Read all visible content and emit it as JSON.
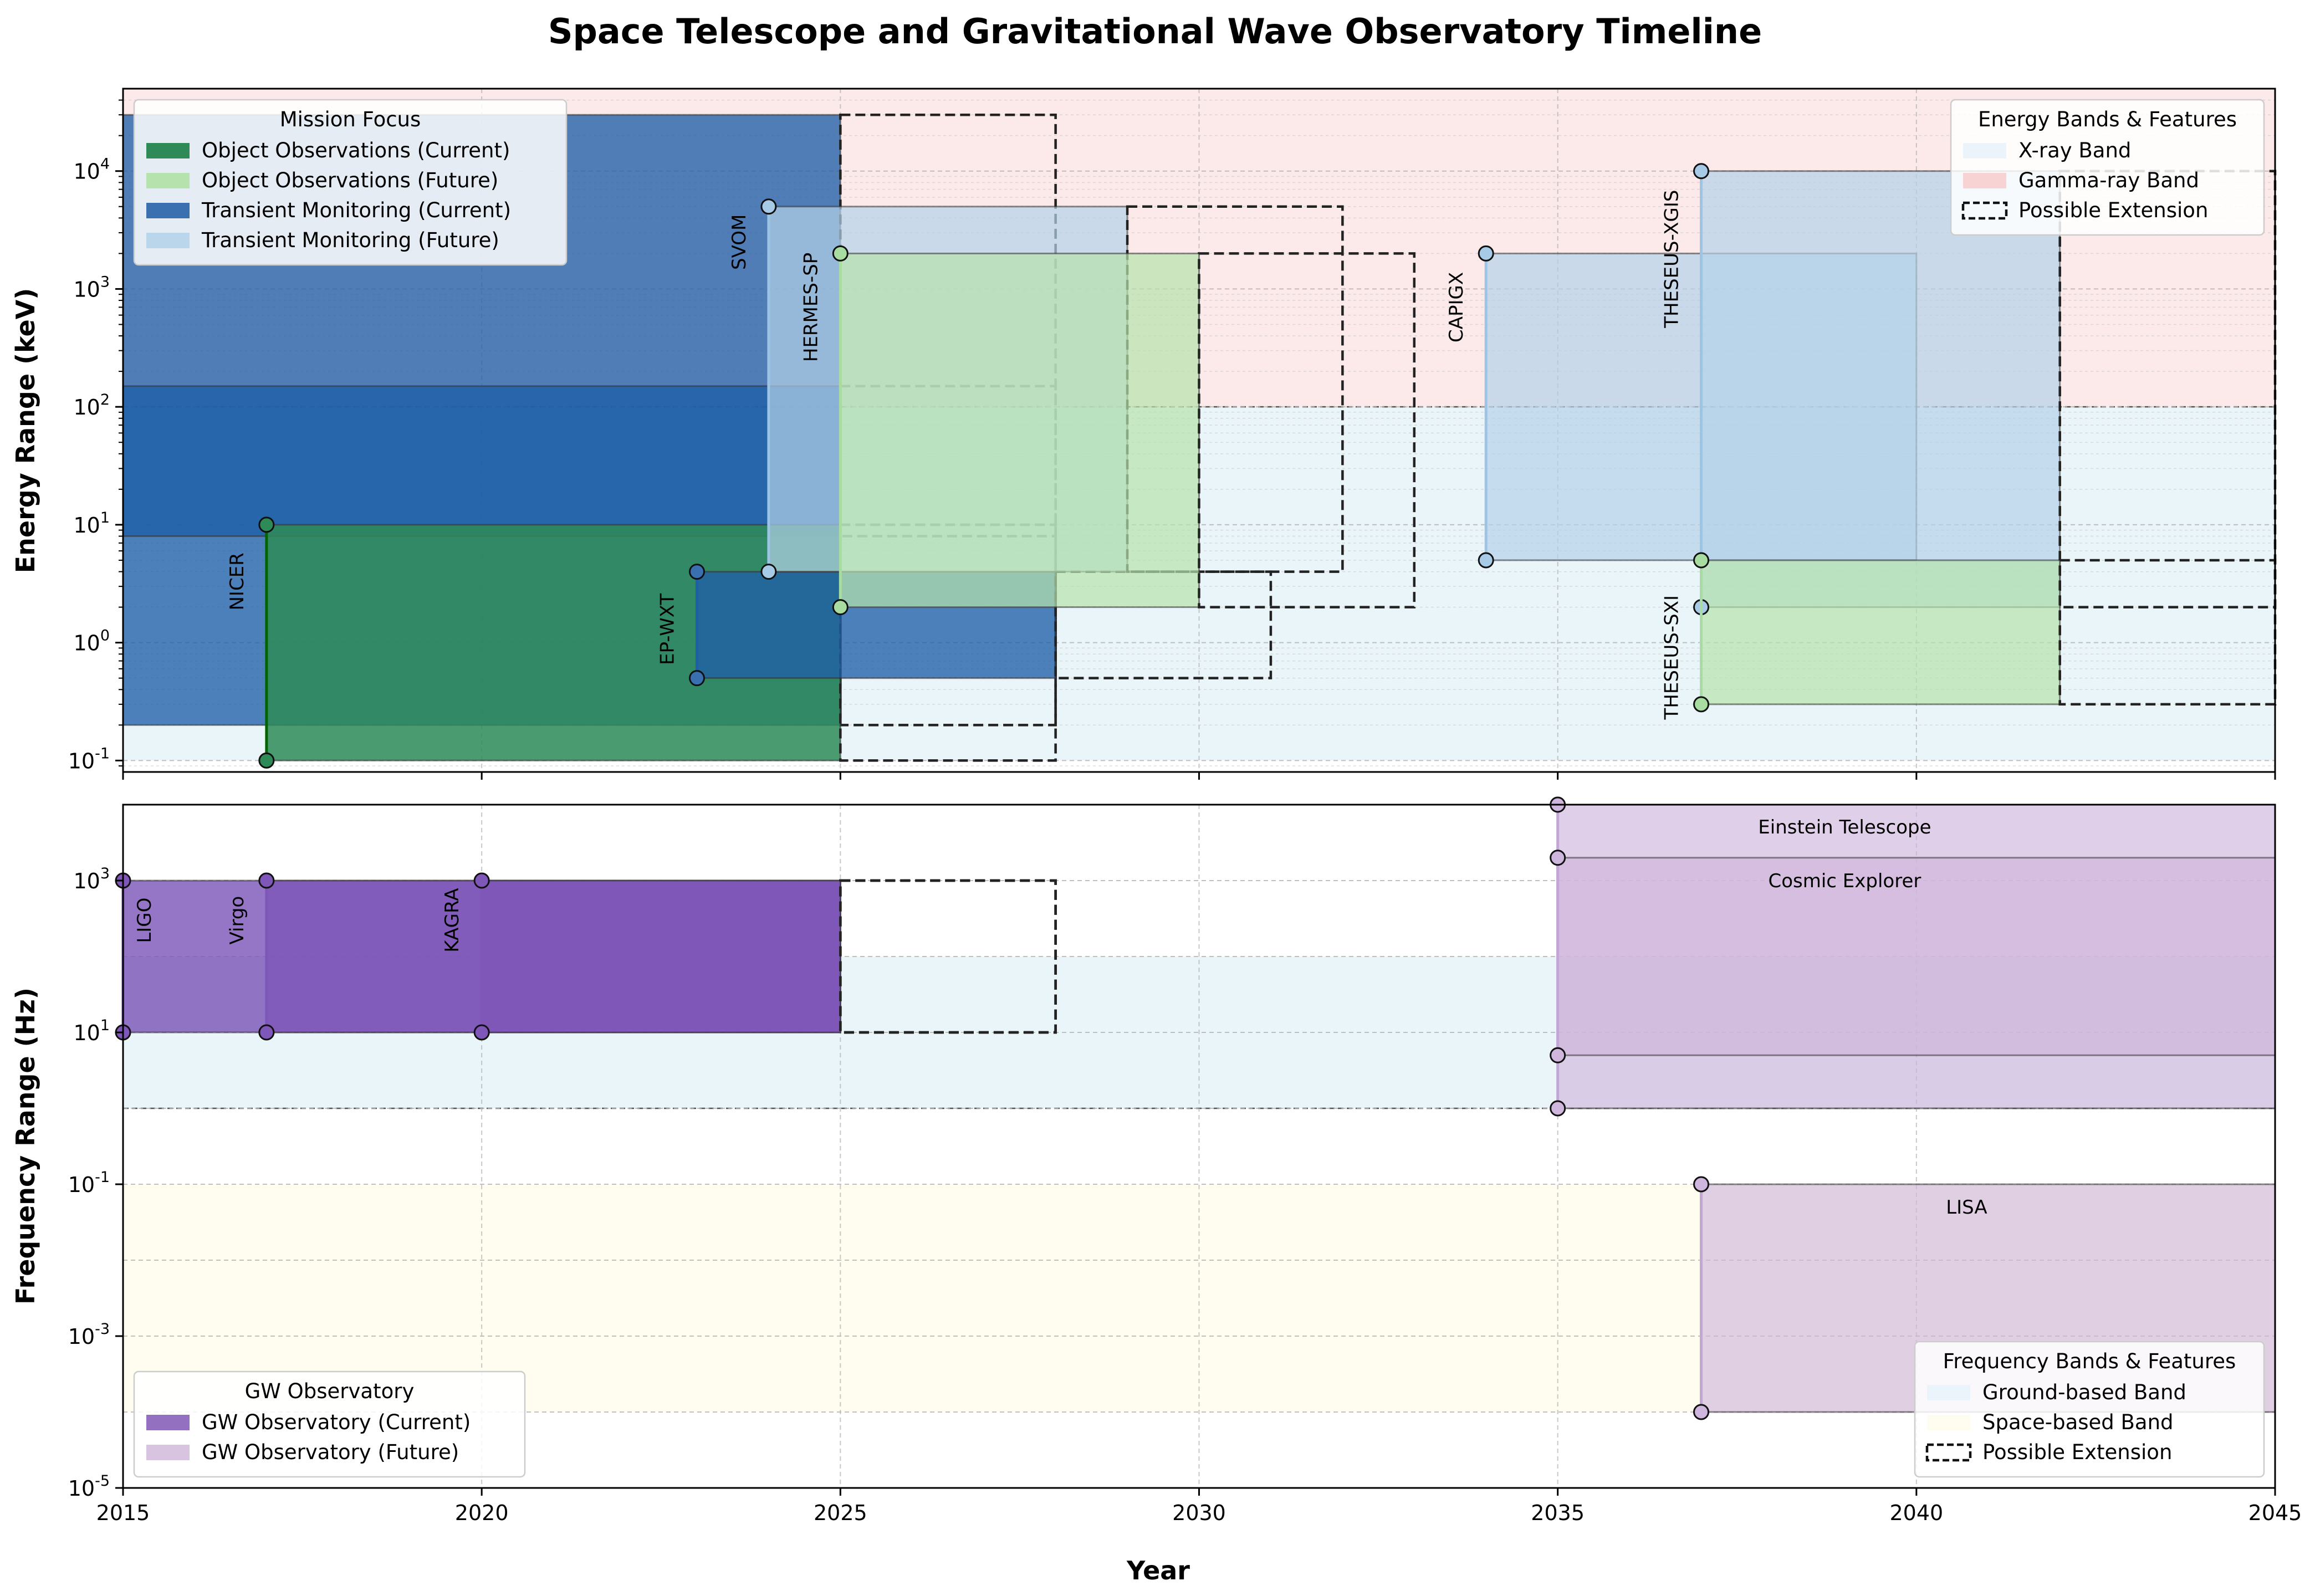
{
  "title": "Space Telescope and Gravitational Wave Observatory Timeline",
  "chart_data": [
    {
      "type": "timeline",
      "panel": "top",
      "xlabel": "Year",
      "ylabel": "Energy Range (keV)",
      "xlim": [
        2015,
        2045
      ],
      "ylim": [
        0.08,
        50000
      ],
      "yscale": "log",
      "xticks": [
        "2015",
        "2020",
        "2025",
        "2030",
        "2035",
        "2040",
        "2045"
      ],
      "yticks": [
        {
          "exp": "-1"
        },
        {
          "exp": "0"
        },
        {
          "exp": "1"
        },
        {
          "exp": "2"
        },
        {
          "exp": "3"
        },
        {
          "exp": "4"
        }
      ],
      "bands": [
        {
          "name": "X-ray Band",
          "y": [
            0.1,
            100
          ],
          "color": "#add8e6"
        },
        {
          "name": "Gamma-ray Band",
          "y": [
            100,
            50000
          ],
          "color": "#f4a6a6"
        }
      ],
      "missions": [
        {
          "name": "",
          "start": 2015,
          "end": 2025,
          "ext_end": 2028,
          "ymin": 0.2,
          "ymax": 30000,
          "category": "Transient Monitoring (Current)"
        },
        {
          "name": "",
          "start": 2015,
          "end": 2025,
          "ext_end": 2028,
          "ymin": 8,
          "ymax": 150,
          "category": "Transient Monitoring (Current)"
        },
        {
          "name": "NICER",
          "start": 2017,
          "end": 2025,
          "ext_end": 2028,
          "ymin": 0.1,
          "ymax": 10,
          "category": "Object Observations (Current)"
        },
        {
          "name": "EP-WXT",
          "start": 2023,
          "end": 2028,
          "ext_end": 2031,
          "ymin": 0.5,
          "ymax": 4,
          "category": "Transient Monitoring (Current)"
        },
        {
          "name": "SVOM",
          "start": 2024,
          "end": 2029,
          "ext_end": 2032,
          "ymin": 4,
          "ymax": 5000,
          "category": "Transient Monitoring (Future)"
        },
        {
          "name": "HERMES-SP",
          "start": 2025,
          "end": 2030,
          "ext_end": 2033,
          "ymin": 2,
          "ymax": 2000,
          "category": "Object Observations (Future)"
        },
        {
          "name": "CAPIGX",
          "start": 2034,
          "end": 2040,
          "ext_end": null,
          "ymin": 5,
          "ymax": 2000,
          "category": "Transient Monitoring (Future)"
        },
        {
          "name": "THESEUS-XGIS",
          "start": 2037,
          "end": 2042,
          "ext_end": 2045,
          "ymin": 2,
          "ymax": 10000,
          "category": "Transient Monitoring (Future)"
        },
        {
          "name": "THESEUS-SXI",
          "start": 2037,
          "end": 2042,
          "ext_end": 2045,
          "ymin": 0.3,
          "ymax": 5,
          "category": "Object Observations (Future)"
        }
      ],
      "legends": [
        {
          "title": "Mission Focus",
          "placement": "upper-left",
          "entries": [
            {
              "label": "Object Observations (Current)",
              "color": "#2e8b57"
            },
            {
              "label": "Object Observations (Future)",
              "color": "#b6e3ad"
            },
            {
              "label": "Transient Monitoring (Current)",
              "color": "#3a70b0"
            },
            {
              "label": "Transient Monitoring (Future)",
              "color": "#b9d6ea"
            }
          ]
        },
        {
          "title": "Energy Bands & Features",
          "placement": "upper-right",
          "entries": [
            {
              "label": "X-ray Band",
              "color": "#eaf4fa"
            },
            {
              "label": "Gamma-ray Band",
              "color": "#f7d3d3"
            },
            {
              "label": "Possible Extension",
              "dashed": true
            }
          ]
        }
      ]
    },
    {
      "type": "timeline",
      "panel": "bottom",
      "xlabel": "Year",
      "ylabel": "Frequency Range (Hz)",
      "xlim": [
        2015,
        2045
      ],
      "ylim": [
        1e-05,
        10000
      ],
      "yscale": "log",
      "xticks": [
        "2015",
        "2020",
        "2025",
        "2030",
        "2035",
        "2040",
        "2045"
      ],
      "yticks": [
        {
          "exp": "-5"
        },
        {
          "exp": "-3"
        },
        {
          "exp": "-1"
        },
        {
          "exp": "1"
        },
        {
          "exp": "3"
        }
      ],
      "bands": [
        {
          "name": "Ground-based Band",
          "y": [
            1,
            100
          ],
          "color": "#add8e6"
        },
        {
          "name": "Space-based Band",
          "y": [
            0.0001,
            0.1
          ],
          "color": "#fffacd"
        }
      ],
      "observatories": [
        {
          "name": "LIGO",
          "start": 2015,
          "end": 2025,
          "ext_end": 2028,
          "ymin": 10,
          "ymax": 1000,
          "category": "GW Observatory (Current)"
        },
        {
          "name": "Virgo",
          "start": 2017,
          "end": 2025,
          "ext_end": 2028,
          "ymin": 10,
          "ymax": 1000,
          "category": "GW Observatory (Current)"
        },
        {
          "name": "KAGRA",
          "start": 2020,
          "end": 2025,
          "ext_end": 2028,
          "ymin": 10,
          "ymax": 1000,
          "category": "GW Observatory (Current)"
        },
        {
          "name": "Einstein Telescope",
          "start": 2035,
          "end": 2045,
          "ext_end": null,
          "ymin": 1,
          "ymax": 10000,
          "category": "GW Observatory (Future)"
        },
        {
          "name": "Cosmic Explorer",
          "start": 2035,
          "end": 2045,
          "ext_end": null,
          "ymin": 5,
          "ymax": 2000,
          "category": "GW Observatory (Future)"
        },
        {
          "name": "LISA",
          "start": 2037,
          "end": 2045,
          "ext_end": null,
          "ymin": 0.0001,
          "ymax": 0.1,
          "category": "GW Observatory (Future)"
        }
      ],
      "legends": [
        {
          "title": "GW Observatory",
          "placement": "lower-left",
          "entries": [
            {
              "label": "GW Observatory (Current)",
              "color": "#9370c0"
            },
            {
              "label": "GW Observatory (Future)",
              "color": "#d8c4e0"
            }
          ]
        },
        {
          "title": "Frequency Bands & Features",
          "placement": "lower-right",
          "entries": [
            {
              "label": "Ground-based Band",
              "color": "#eaf4fa"
            },
            {
              "label": "Space-based Band",
              "color": "#fffdf0"
            },
            {
              "label": "Possible Extension",
              "dashed": true
            }
          ]
        }
      ]
    }
  ]
}
